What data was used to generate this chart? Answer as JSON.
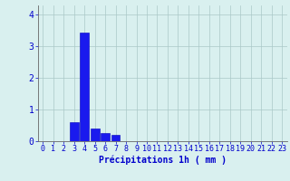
{
  "values": [
    0,
    0,
    0,
    0.6,
    3.45,
    0.4,
    0.25,
    0.2,
    0,
    0,
    0,
    0,
    0,
    0,
    0,
    0,
    0,
    0,
    0,
    0,
    0,
    0,
    0,
    0
  ],
  "n_bars": 24,
  "bar_color": "#1a1aee",
  "bar_edge_color": "#0000bb",
  "background_color": "#d9f0ef",
  "grid_color": "#aac8c8",
  "axis_label_color": "#0000cc",
  "tick_color": "#0000cc",
  "xlabel": "Précipitations 1h ( mm )",
  "xlim": [
    -0.5,
    23.5
  ],
  "ylim": [
    0,
    4.3
  ],
  "yticks": [
    0,
    1,
    2,
    3,
    4
  ],
  "xtick_labels": [
    "0",
    "1",
    "2",
    "3",
    "4",
    "5",
    "6",
    "7",
    "8",
    "9",
    "10",
    "11",
    "12",
    "13",
    "14",
    "15",
    "16",
    "17",
    "18",
    "19",
    "20",
    "21",
    "22",
    "23"
  ],
  "xlabel_fontsize": 7.0,
  "tick_fontsize": 6.0,
  "bar_width": 0.85
}
